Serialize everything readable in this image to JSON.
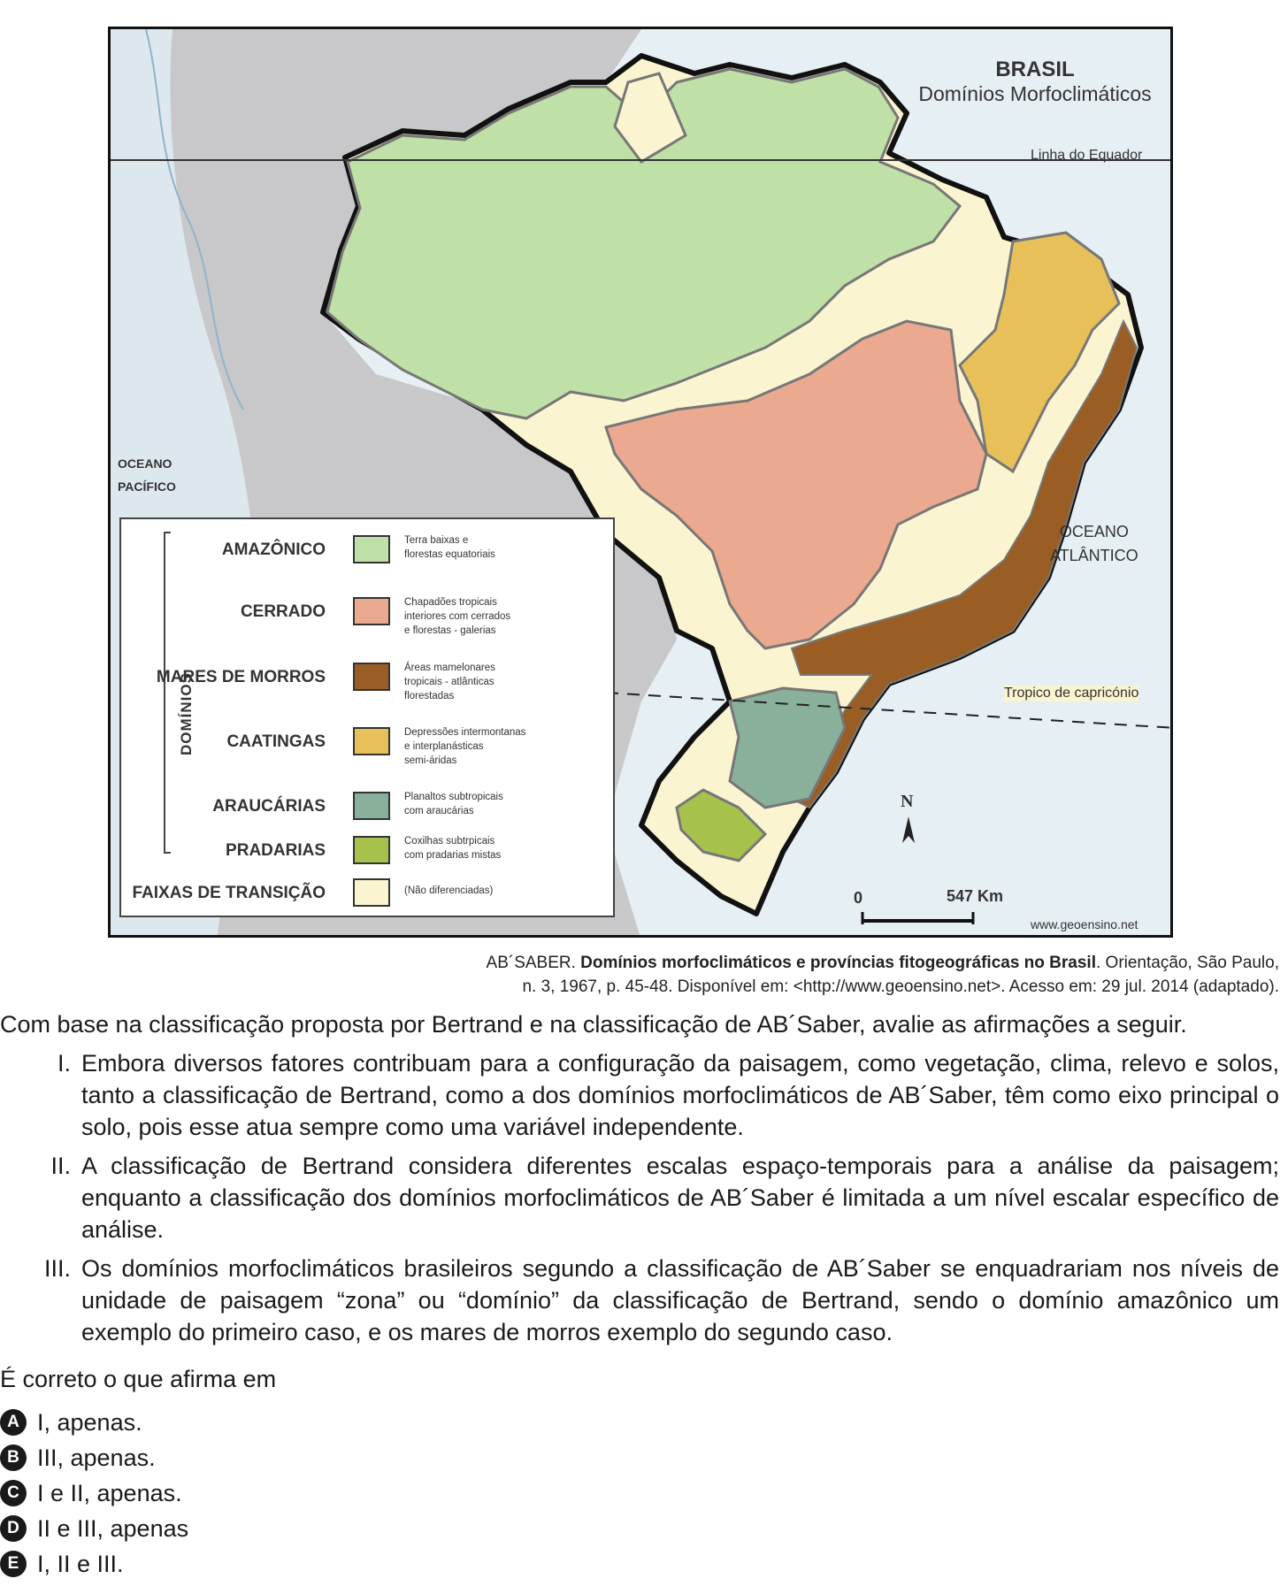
{
  "map": {
    "title": "BRASIL",
    "subtitle": "Domínios Morfoclimáticos",
    "equator_label": "Linha do Equador",
    "tropic_label": "Tropico de capricónio",
    "ocean_pacific": [
      "OCEANO",
      "PACÍFICO"
    ],
    "ocean_atlantic": [
      "OCEANO",
      "ATLÂNTICO"
    ],
    "north_label": "N",
    "scale_start": "0",
    "scale_end": "547 Km",
    "source_mark": "www.geoensino.net",
    "legend_group_label": "DOMÍNIOS",
    "legend": [
      {
        "label": "AMAZÔNICO",
        "color": "#bfe0a7",
        "desc": [
          "Terra baixas e",
          "florestas equatoriais"
        ]
      },
      {
        "label": "CERRADO",
        "color": "#eba98f",
        "desc": [
          "Chapadões tropicais",
          "interiores com cerrados",
          "e florestas - galerias"
        ]
      },
      {
        "label": "MARES DE MORROS",
        "color": "#9a5e24",
        "desc": [
          "Áreas mamelonares",
          "tropicais - atlânticas",
          "florestadas"
        ]
      },
      {
        "label": "CAATINGAS",
        "color": "#e8c05a",
        "desc": [
          "Depressões intermontanas",
          "e interplanásticas",
          "semi-áridas"
        ]
      },
      {
        "label": "ARAUCÁRIAS",
        "color": "#88b09b",
        "desc": [
          "Planaltos subtropicais",
          "com araucárias"
        ]
      },
      {
        "label": "PRADARIAS",
        "color": "#a6c24c",
        "desc": [
          "Coxilhas subtrpicais",
          "com pradarias mistas"
        ]
      },
      {
        "label": "FAIXAS DE TRANSIÇÃO",
        "color": "#fbf4d0",
        "desc": [
          "(Não diferenciadas)"
        ]
      }
    ]
  },
  "citation": {
    "author": "AB´SABER.",
    "title": "Domínios morfoclimáticos e províncias fitogeográficas no Brasil",
    "rest_line1": ". Orientação, São Paulo,",
    "line2": "n. 3, 1967, p. 45-48. Disponível em: <http://www.geoensino.net>. Acesso em: 29 jul. 2014 (adaptado)."
  },
  "intro": "Com base na classificação proposta por Bertrand e na classificação de AB´Saber, avalie as afirmações a seguir.",
  "statements": [
    {
      "num": "I.",
      "text": "Embora diversos fatores contribuam para a configuração da paisagem, como vegetação, clima, relevo e solos, tanto a classificação de Bertrand, como a dos domínios morfoclimáticos de AB´Saber, têm como eixo principal o solo, pois esse atua sempre como uma variável independente."
    },
    {
      "num": "II.",
      "text": "A classificação de Bertrand considera diferentes escalas espaço-temporais para a análise da paisagem; enquanto a classificação dos domínios morfoclimáticos de AB´Saber é limitada a um nível escalar específico de análise."
    },
    {
      "num": "III.",
      "text": "Os domínios morfoclimáticos brasileiros segundo a classificação de AB´Saber se enquadrariam nos níveis de unidade de paisagem “zona” ou “domínio” da classificação de Bertrand, sendo o domínio amazônico um exemplo do primeiro caso, e os mares de morros exemplo do segundo caso."
    }
  ],
  "question": "É correto o que afirma em",
  "options": [
    {
      "letter": "A",
      "text": "I, apenas."
    },
    {
      "letter": "B",
      "text": "III, apenas."
    },
    {
      "letter": "C",
      "text": "I e II, apenas."
    },
    {
      "letter": "D",
      "text": "II e III, apenas"
    },
    {
      "letter": "E",
      "text": "I, II e III."
    }
  ]
}
